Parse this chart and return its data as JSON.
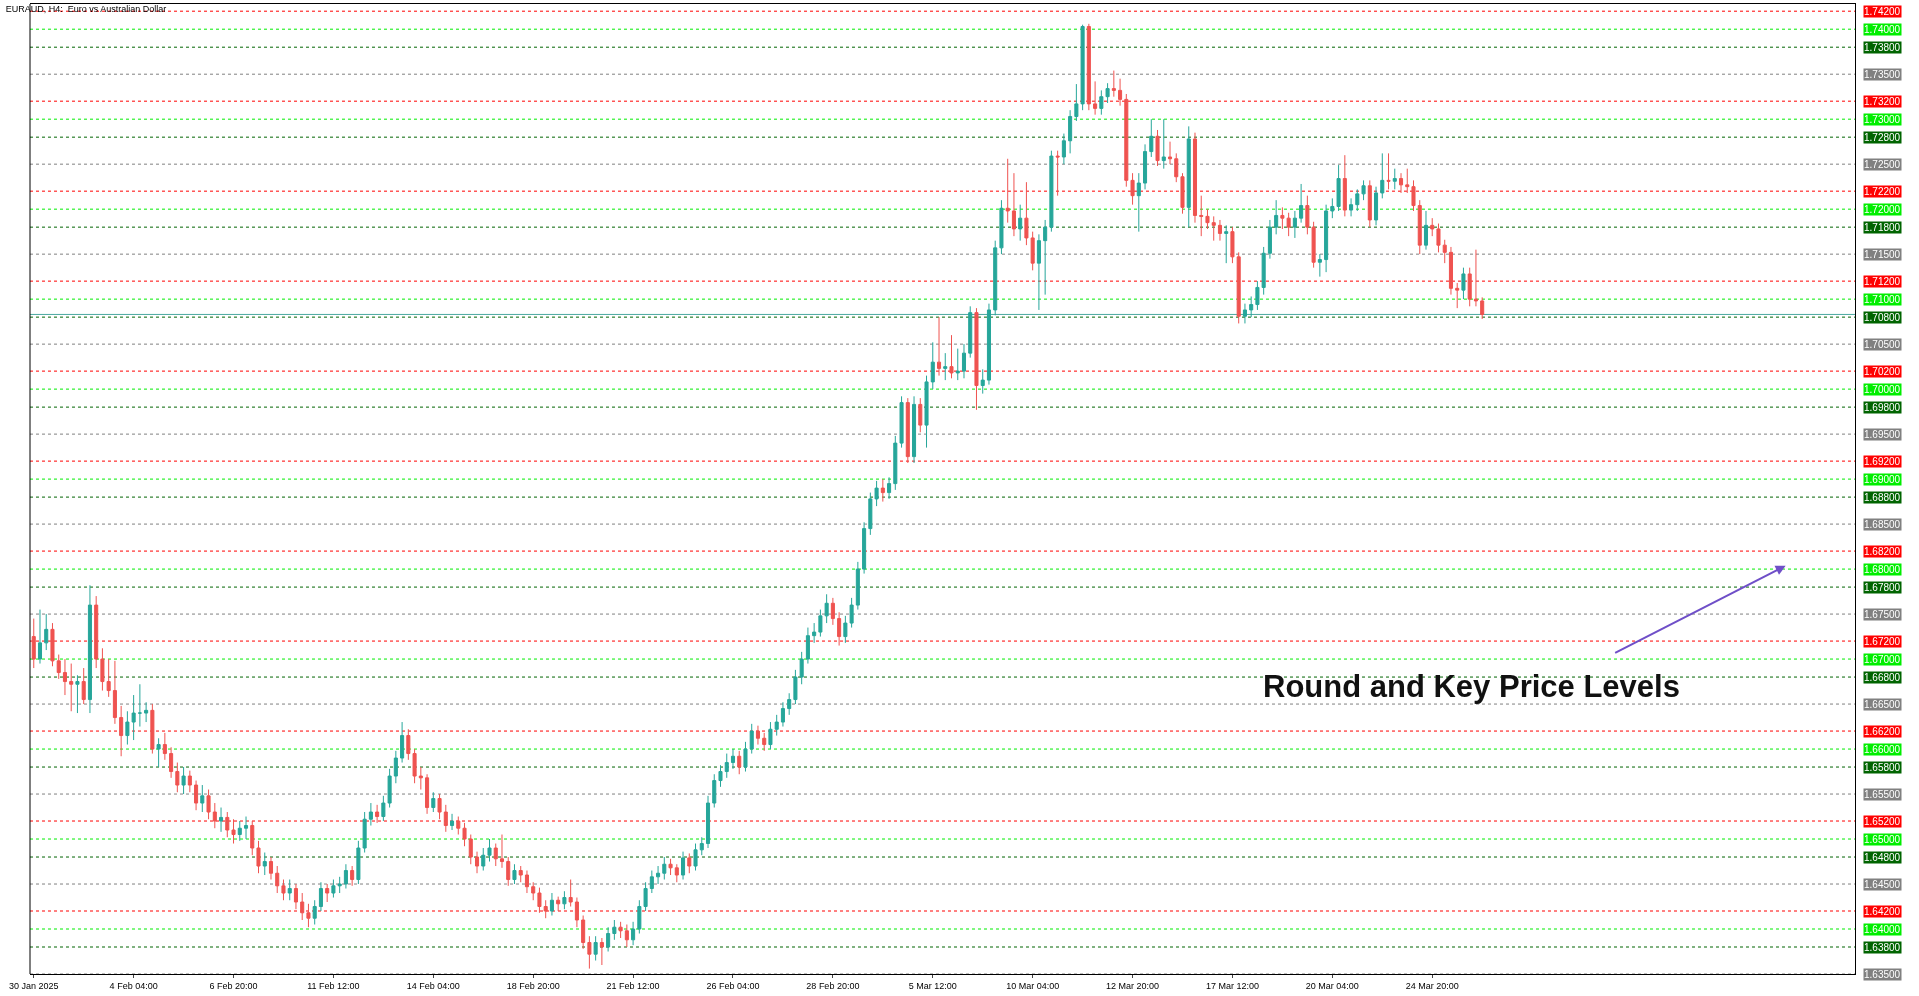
{
  "chart_data": {
    "type": "candlestick",
    "title": "EURAUD, H4:  Euro vs Australian Dollar",
    "categories": [
      "30 Jan 2025",
      null,
      null,
      null,
      null,
      null,
      null,
      null,
      null,
      null,
      null,
      null,
      null,
      null,
      null,
      null,
      "4 Feb 04:00",
      null,
      null,
      null,
      null,
      null,
      null,
      null,
      null,
      null,
      null,
      null,
      null,
      null,
      null,
      null,
      "6 Feb 20:00",
      null,
      null,
      null,
      null,
      null,
      null,
      null,
      null,
      null,
      null,
      null,
      null,
      null,
      null,
      null,
      "11 Feb 12:00",
      null,
      null,
      null,
      null,
      null,
      null,
      null,
      null,
      null,
      null,
      null,
      null,
      null,
      null,
      null,
      "14 Feb 04:00",
      null,
      null,
      null,
      null,
      null,
      null,
      null,
      null,
      null,
      null,
      null,
      null,
      null,
      null,
      null,
      "18 Feb 20:00",
      null,
      null,
      null,
      null,
      null,
      null,
      null,
      null,
      null,
      null,
      null,
      null,
      null,
      null,
      null,
      "21 Feb 12:00",
      null,
      null,
      null,
      null,
      null,
      null,
      null,
      null,
      null,
      null,
      null,
      null,
      null,
      null,
      null,
      "26 Feb 04:00",
      null,
      null,
      null,
      null,
      null,
      null,
      null,
      null,
      null,
      null,
      null,
      null,
      null,
      null,
      null,
      "28 Feb 20:00",
      null,
      null,
      null,
      null,
      null,
      null,
      null,
      null,
      null,
      null,
      null,
      null,
      null,
      null,
      null,
      "5 Mar 12:00",
      null,
      null,
      null,
      null,
      null,
      null,
      null,
      null,
      null,
      null,
      null,
      null,
      null,
      null,
      null,
      "10 Mar 04:00",
      null,
      null,
      null,
      null,
      null,
      null,
      null,
      null,
      null,
      null,
      null,
      null,
      null,
      null,
      null,
      "12 Mar 20:00",
      null,
      null,
      null,
      null,
      null,
      null,
      null,
      null,
      null,
      null,
      null,
      null,
      null,
      null,
      null,
      "17 Mar 12:00",
      null,
      null,
      null,
      null,
      null,
      null,
      null,
      null,
      null,
      null,
      null,
      null,
      null,
      null,
      null,
      "20 Mar 04:00",
      null,
      null,
      null,
      null,
      null,
      null,
      null,
      null,
      null,
      null,
      null,
      null,
      null,
      null,
      null,
      "24 Mar 20:00",
      null,
      null,
      null,
      null,
      null,
      null,
      null,
      null
    ],
    "ohlc": [
      [
        1.6725,
        1.6745,
        1.669,
        1.67
      ],
      [
        1.67,
        1.6755,
        1.6695,
        1.6718
      ],
      [
        1.6718,
        1.675,
        1.671,
        1.6733
      ],
      [
        1.6733,
        1.674,
        1.6692,
        1.6698
      ],
      [
        1.6698,
        1.6705,
        1.6678,
        1.6685
      ],
      [
        1.6685,
        1.67,
        1.666,
        1.6675
      ],
      [
        1.6675,
        1.6695,
        1.6642,
        1.6672
      ],
      [
        1.6672,
        1.6682,
        1.664,
        1.6675
      ],
      [
        1.6675,
        1.669,
        1.665,
        1.6655
      ],
      [
        1.6655,
        1.6782,
        1.664,
        1.676
      ],
      [
        1.676,
        1.677,
        1.669,
        1.67
      ],
      [
        1.67,
        1.6712,
        1.6665,
        1.6675
      ],
      [
        1.6675,
        1.67,
        1.6658,
        1.6665
      ],
      [
        1.6665,
        1.6698,
        1.6628,
        1.6635
      ],
      [
        1.6635,
        1.6648,
        1.6592,
        1.6615
      ],
      [
        1.6615,
        1.6642,
        1.6605,
        1.663
      ],
      [
        1.663,
        1.666,
        1.661,
        1.664
      ],
      [
        1.664,
        1.6672,
        1.6625,
        1.664
      ],
      [
        1.664,
        1.6652,
        1.663,
        1.6643
      ],
      [
        1.6643,
        1.665,
        1.6595,
        1.66
      ],
      [
        1.66,
        1.6612,
        1.658,
        1.6605
      ],
      [
        1.6605,
        1.6618,
        1.6588,
        1.6595
      ],
      [
        1.6595,
        1.6602,
        1.6568,
        1.6575
      ],
      [
        1.6575,
        1.6585,
        1.6552,
        1.656
      ],
      [
        1.656,
        1.658,
        1.655,
        1.657
      ],
      [
        1.657,
        1.6576,
        1.6552,
        1.656
      ],
      [
        1.656,
        1.6565,
        1.6532,
        1.654
      ],
      [
        1.654,
        1.656,
        1.653,
        1.6548
      ],
      [
        1.6548,
        1.6555,
        1.6522,
        1.653
      ],
      [
        1.653,
        1.654,
        1.6512,
        1.652
      ],
      [
        1.652,
        1.6535,
        1.6508,
        1.6524
      ],
      [
        1.6524,
        1.653,
        1.6502,
        1.651
      ],
      [
        1.651,
        1.6522,
        1.6495,
        1.6505
      ],
      [
        1.6505,
        1.652,
        1.6498,
        1.6512
      ],
      [
        1.6512,
        1.6525,
        1.65,
        1.6515
      ],
      [
        1.6515,
        1.652,
        1.6482,
        1.649
      ],
      [
        1.649,
        1.6498,
        1.6462,
        1.647
      ],
      [
        1.647,
        1.6485,
        1.646,
        1.6475
      ],
      [
        1.6475,
        1.648,
        1.6455,
        1.6462
      ],
      [
        1.6462,
        1.647,
        1.644,
        1.6448
      ],
      [
        1.6448,
        1.6455,
        1.6432,
        1.644
      ],
      [
        1.644,
        1.6455,
        1.6432,
        1.6445
      ],
      [
        1.6445,
        1.645,
        1.6422,
        1.643
      ],
      [
        1.643,
        1.644,
        1.641,
        1.6418
      ],
      [
        1.6418,
        1.6428,
        1.6402,
        1.6412
      ],
      [
        1.6412,
        1.6432,
        1.6405,
        1.6425
      ],
      [
        1.6425,
        1.6452,
        1.642,
        1.6445
      ],
      [
        1.6445,
        1.645,
        1.643,
        1.644
      ],
      [
        1.644,
        1.6455,
        1.6435,
        1.6448
      ],
      [
        1.6448,
        1.6458,
        1.644,
        1.645
      ],
      [
        1.645,
        1.6472,
        1.6445,
        1.6465
      ],
      [
        1.6465,
        1.647,
        1.6448,
        1.6455
      ],
      [
        1.6455,
        1.6498,
        1.645,
        1.649
      ],
      [
        1.649,
        1.653,
        1.6485,
        1.6522
      ],
      [
        1.6522,
        1.654,
        1.6515,
        1.653
      ],
      [
        1.653,
        1.6538,
        1.6518,
        1.6525
      ],
      [
        1.6525,
        1.6548,
        1.652,
        1.654
      ],
      [
        1.654,
        1.6578,
        1.6535,
        1.657
      ],
      [
        1.657,
        1.6598,
        1.6562,
        1.659
      ],
      [
        1.659,
        1.663,
        1.6585,
        1.6615
      ],
      [
        1.6615,
        1.6622,
        1.6588,
        1.6595
      ],
      [
        1.6595,
        1.66,
        1.6562,
        1.657
      ],
      [
        1.657,
        1.658,
        1.6555,
        1.6568
      ],
      [
        1.6568,
        1.6572,
        1.6528,
        1.6535
      ],
      [
        1.6535,
        1.6552,
        1.653,
        1.6545
      ],
      [
        1.6545,
        1.655,
        1.6522,
        1.653
      ],
      [
        1.653,
        1.6538,
        1.6508,
        1.6515
      ],
      [
        1.6515,
        1.6528,
        1.651,
        1.652
      ],
      [
        1.652,
        1.6525,
        1.6505,
        1.6512
      ],
      [
        1.6512,
        1.6518,
        1.6492,
        1.65
      ],
      [
        1.65,
        1.6505,
        1.6472,
        1.648
      ],
      [
        1.648,
        1.6486,
        1.6462,
        1.647
      ],
      [
        1.647,
        1.649,
        1.6465,
        1.6482
      ],
      [
        1.6482,
        1.65,
        1.6475,
        1.649
      ],
      [
        1.649,
        1.6495,
        1.647,
        1.6478
      ],
      [
        1.6478,
        1.6505,
        1.6468,
        1.6475
      ],
      [
        1.6475,
        1.648,
        1.6448,
        1.6455
      ],
      [
        1.6455,
        1.6472,
        1.645,
        1.6465
      ],
      [
        1.6465,
        1.647,
        1.6452,
        1.646
      ],
      [
        1.646,
        1.6465,
        1.644,
        1.6447
      ],
      [
        1.6447,
        1.6452,
        1.6432,
        1.644
      ],
      [
        1.644,
        1.6446,
        1.6418,
        1.6425
      ],
      [
        1.6425,
        1.6432,
        1.6412,
        1.642
      ],
      [
        1.642,
        1.644,
        1.6415,
        1.6432
      ],
      [
        1.6432,
        1.6436,
        1.642,
        1.6428
      ],
      [
        1.6428,
        1.6442,
        1.6422,
        1.6435
      ],
      [
        1.6435,
        1.6455,
        1.6425,
        1.643
      ],
      [
        1.643,
        1.6435,
        1.6402,
        1.641
      ],
      [
        1.641,
        1.6415,
        1.6378,
        1.6385
      ],
      [
        1.6385,
        1.6392,
        1.6356,
        1.6372
      ],
      [
        1.6372,
        1.6392,
        1.6365,
        1.6385
      ],
      [
        1.6385,
        1.639,
        1.636,
        1.638
      ],
      [
        1.638,
        1.6402,
        1.6375,
        1.6395
      ],
      [
        1.6395,
        1.641,
        1.6388,
        1.6402
      ],
      [
        1.6402,
        1.6408,
        1.639,
        1.6398
      ],
      [
        1.6398,
        1.6405,
        1.638,
        1.6388
      ],
      [
        1.6388,
        1.6408,
        1.6382,
        1.64
      ],
      [
        1.64,
        1.6432,
        1.6395,
        1.6425
      ],
      [
        1.6425,
        1.6452,
        1.642,
        1.6445
      ],
      [
        1.6445,
        1.6465,
        1.644,
        1.6458
      ],
      [
        1.6458,
        1.647,
        1.645,
        1.6462
      ],
      [
        1.6462,
        1.648,
        1.6455,
        1.6472
      ],
      [
        1.6472,
        1.6478,
        1.646,
        1.6468
      ],
      [
        1.6468,
        1.6472,
        1.6452,
        1.646
      ],
      [
        1.646,
        1.6486,
        1.6455,
        1.6479
      ],
      [
        1.6479,
        1.6484,
        1.6462,
        1.647
      ],
      [
        1.647,
        1.6495,
        1.6465,
        1.6488
      ],
      [
        1.6488,
        1.6502,
        1.6482,
        1.6495
      ],
      [
        1.6495,
        1.6548,
        1.649,
        1.654
      ],
      [
        1.654,
        1.6572,
        1.6535,
        1.6565
      ],
      [
        1.6565,
        1.6582,
        1.6558,
        1.6575
      ],
      [
        1.6575,
        1.6595,
        1.6568,
        1.6585
      ],
      [
        1.6585,
        1.66,
        1.6578,
        1.6592
      ],
      [
        1.6592,
        1.6598,
        1.6572,
        1.658
      ],
      [
        1.658,
        1.6608,
        1.6575,
        1.66
      ],
      [
        1.66,
        1.6628,
        1.6595,
        1.662
      ],
      [
        1.662,
        1.6626,
        1.6605,
        1.6612
      ],
      [
        1.6612,
        1.6618,
        1.6598,
        1.6605
      ],
      [
        1.6605,
        1.663,
        1.66,
        1.6622
      ],
      [
        1.6622,
        1.6638,
        1.6615,
        1.663
      ],
      [
        1.663,
        1.6652,
        1.6625,
        1.6645
      ],
      [
        1.6645,
        1.6662,
        1.6638,
        1.6655
      ],
      [
        1.6655,
        1.6688,
        1.665,
        1.668
      ],
      [
        1.668,
        1.6708,
        1.6672,
        1.67
      ],
      [
        1.67,
        1.6735,
        1.6695,
        1.6726
      ],
      [
        1.6726,
        1.674,
        1.6718,
        1.673
      ],
      [
        1.673,
        1.6755,
        1.6725,
        1.6748
      ],
      [
        1.6748,
        1.6772,
        1.674,
        1.6762
      ],
      [
        1.6762,
        1.6768,
        1.6738,
        1.6745
      ],
      [
        1.6745,
        1.6752,
        1.6715,
        1.6725
      ],
      [
        1.6725,
        1.6748,
        1.6718,
        1.674
      ],
      [
        1.674,
        1.6768,
        1.6735,
        1.676
      ],
      [
        1.676,
        1.6808,
        1.6755,
        1.68
      ],
      [
        1.68,
        1.6852,
        1.6795,
        1.6845
      ],
      [
        1.6845,
        1.6885,
        1.6838,
        1.6878
      ],
      [
        1.6878,
        1.6898,
        1.687,
        1.689
      ],
      [
        1.689,
        1.69,
        1.6875,
        1.6885
      ],
      [
        1.6885,
        1.6902,
        1.6878,
        1.6895
      ],
      [
        1.6895,
        1.6948,
        1.6888,
        1.694
      ],
      [
        1.694,
        1.6992,
        1.6935,
        1.6985
      ],
      [
        1.6985,
        1.699,
        1.6918,
        1.6925
      ],
      [
        1.6925,
        1.6992,
        1.6918,
        1.6983
      ],
      [
        1.6983,
        1.699,
        1.6952,
        1.696
      ],
      [
        1.696,
        1.7015,
        1.6935,
        1.7008
      ],
      [
        1.7008,
        1.7052,
        1.7,
        1.703
      ],
      [
        1.703,
        1.708,
        1.7015,
        1.7023
      ],
      [
        1.7023,
        1.704,
        1.701,
        1.7025
      ],
      [
        1.7025,
        1.706,
        1.7012,
        1.7018
      ],
      [
        1.7018,
        1.7045,
        1.701,
        1.702
      ],
      [
        1.702,
        1.705,
        1.7012,
        1.704
      ],
      [
        1.704,
        1.7092,
        1.7035,
        1.7085
      ],
      [
        1.7085,
        1.709,
        1.6977,
        1.7004
      ],
      [
        1.7004,
        1.7022,
        1.6995,
        1.701
      ],
      [
        1.701,
        1.7095,
        1.7005,
        1.7088
      ],
      [
        1.7088,
        1.7165,
        1.7082,
        1.7157
      ],
      [
        1.7157,
        1.721,
        1.715,
        1.7201
      ],
      [
        1.7201,
        1.7256,
        1.7185,
        1.7198
      ],
      [
        1.7198,
        1.724,
        1.717,
        1.7178
      ],
      [
        1.7178,
        1.7205,
        1.7165,
        1.719
      ],
      [
        1.719,
        1.723,
        1.716,
        1.7168
      ],
      [
        1.7168,
        1.7175,
        1.7132,
        1.714
      ],
      [
        1.714,
        1.7172,
        1.7088,
        1.7165
      ],
      [
        1.7165,
        1.7188,
        1.7105,
        1.718
      ],
      [
        1.718,
        1.7265,
        1.7175,
        1.7259
      ],
      [
        1.7259,
        1.7265,
        1.7215,
        1.7258
      ],
      [
        1.7258,
        1.7284,
        1.725,
        1.7276
      ],
      [
        1.7276,
        1.731,
        1.7262,
        1.7303
      ],
      [
        1.7303,
        1.7339,
        1.7298,
        1.7317
      ],
      [
        1.7317,
        1.7405,
        1.731,
        1.7403
      ],
      [
        1.7403,
        1.7406,
        1.731,
        1.7317
      ],
      [
        1.7317,
        1.7342,
        1.7305,
        1.7312
      ],
      [
        1.7312,
        1.7332,
        1.7305,
        1.7325
      ],
      [
        1.7325,
        1.734,
        1.7318,
        1.7334
      ],
      [
        1.7334,
        1.7354,
        1.7325,
        1.7332
      ],
      [
        1.7332,
        1.7345,
        1.7315,
        1.7322
      ],
      [
        1.7322,
        1.7328,
        1.7225,
        1.7232
      ],
      [
        1.7232,
        1.724,
        1.7205,
        1.7215
      ],
      [
        1.7215,
        1.724,
        1.7175,
        1.7229
      ],
      [
        1.7229,
        1.7272,
        1.7222,
        1.7264
      ],
      [
        1.7264,
        1.73,
        1.7258,
        1.7281
      ],
      [
        1.7281,
        1.7288,
        1.7248,
        1.7254
      ],
      [
        1.7254,
        1.73,
        1.7245,
        1.7258
      ],
      [
        1.7258,
        1.7275,
        1.725,
        1.7256
      ],
      [
        1.7256,
        1.7262,
        1.723,
        1.7236
      ],
      [
        1.7236,
        1.724,
        1.7195,
        1.7202
      ],
      [
        1.7202,
        1.7292,
        1.718,
        1.7278
      ],
      [
        1.7278,
        1.7285,
        1.7185,
        1.7193
      ],
      [
        1.7193,
        1.7215,
        1.717,
        1.7192
      ],
      [
        1.7192,
        1.72,
        1.7178,
        1.7185
      ],
      [
        1.7185,
        1.7192,
        1.7165,
        1.7182
      ],
      [
        1.7182,
        1.7188,
        1.7165,
        1.7173
      ],
      [
        1.7173,
        1.7182,
        1.714,
        1.7175
      ],
      [
        1.7175,
        1.718,
        1.714,
        1.7147
      ],
      [
        1.7147,
        1.7152,
        1.7073,
        1.7081
      ],
      [
        1.7081,
        1.7095,
        1.7073,
        1.7088
      ],
      [
        1.7088,
        1.7103,
        1.708,
        1.7094
      ],
      [
        1.7094,
        1.712,
        1.7088,
        1.7113
      ],
      [
        1.7113,
        1.7158,
        1.7105,
        1.7151
      ],
      [
        1.7151,
        1.7188,
        1.7145,
        1.718
      ],
      [
        1.718,
        1.721,
        1.7172,
        1.7193
      ],
      [
        1.7193,
        1.7202,
        1.7178,
        1.719
      ],
      [
        1.719,
        1.7196,
        1.717,
        1.718
      ],
      [
        1.718,
        1.7198,
        1.7168,
        1.719
      ],
      [
        1.719,
        1.7228,
        1.7185,
        1.7204
      ],
      [
        1.7204,
        1.7215,
        1.7172,
        1.718
      ],
      [
        1.718,
        1.7186,
        1.7135,
        1.7141
      ],
      [
        1.7141,
        1.715,
        1.7125,
        1.7144
      ],
      [
        1.7144,
        1.7205,
        1.713,
        1.7198
      ],
      [
        1.7198,
        1.7212,
        1.719,
        1.7203
      ],
      [
        1.7203,
        1.7249,
        1.7198,
        1.7234
      ],
      [
        1.7234,
        1.726,
        1.7192,
        1.7199
      ],
      [
        1.7199,
        1.7212,
        1.7192,
        1.7205
      ],
      [
        1.7205,
        1.7222,
        1.7198,
        1.7217
      ],
      [
        1.7217,
        1.7232,
        1.721,
        1.7226
      ],
      [
        1.7226,
        1.7232,
        1.718,
        1.7188
      ],
      [
        1.7188,
        1.7225,
        1.7182,
        1.7218
      ],
      [
        1.7218,
        1.7262,
        1.7212,
        1.7232
      ],
      [
        1.7232,
        1.7262,
        1.7222,
        1.7231
      ],
      [
        1.7231,
        1.7245,
        1.7222,
        1.7234
      ],
      [
        1.7234,
        1.724,
        1.7218,
        1.7227
      ],
      [
        1.7227,
        1.7245,
        1.7218,
        1.7225
      ],
      [
        1.7225,
        1.7232,
        1.7198,
        1.7204
      ],
      [
        1.7204,
        1.721,
        1.715,
        1.716
      ],
      [
        1.716,
        1.7198,
        1.7155,
        1.7182
      ],
      [
        1.7182,
        1.719,
        1.717,
        1.7178
      ],
      [
        1.7178,
        1.7184,
        1.7152,
        1.716
      ],
      [
        1.716,
        1.7166,
        1.714,
        1.7152
      ],
      [
        1.7152,
        1.7158,
        1.7105,
        1.7112
      ],
      [
        1.7112,
        1.7118,
        1.709,
        1.711
      ],
      [
        1.711,
        1.7135,
        1.71,
        1.7128
      ],
      [
        1.7128,
        1.7135,
        1.7092,
        1.71
      ],
      [
        1.71,
        1.7155,
        1.7092,
        1.7098
      ],
      [
        1.7098,
        1.7102,
        1.7078,
        1.7083
      ]
    ],
    "ylim": [
      1.635,
      1.7428
    ],
    "grid": false,
    "ref_lines": [
      {
        "axis": "y",
        "value": 1.742,
        "label": "1.74200",
        "color": "#ff0000",
        "line_style": "dotted"
      },
      {
        "axis": "y",
        "value": 1.74,
        "label": "1.74000",
        "color": "#00ee00",
        "line_style": "dotted"
      },
      {
        "axis": "y",
        "value": 1.738,
        "label": "1.73800",
        "color": "#006400",
        "line_style": "dotted"
      },
      {
        "axis": "y",
        "value": 1.735,
        "label": "1.73500",
        "color": "#808080",
        "line_style": "dotted"
      },
      {
        "axis": "y",
        "value": 1.732,
        "label": "1.73200",
        "color": "#ff0000",
        "line_style": "dotted"
      },
      {
        "axis": "y",
        "value": 1.73,
        "label": "1.73000",
        "color": "#00ee00",
        "line_style": "dotted"
      },
      {
        "axis": "y",
        "value": 1.728,
        "label": "1.72800",
        "color": "#006400",
        "line_style": "dotted"
      },
      {
        "axis": "y",
        "value": 1.725,
        "label": "1.72500",
        "color": "#808080",
        "line_style": "dotted"
      },
      {
        "axis": "y",
        "value": 1.722,
        "label": "1.72200",
        "color": "#ff0000",
        "line_style": "dotted"
      },
      {
        "axis": "y",
        "value": 1.72,
        "label": "1.72000",
        "color": "#00ee00",
        "line_style": "dotted"
      },
      {
        "axis": "y",
        "value": 1.718,
        "label": "1.71800",
        "color": "#006400",
        "line_style": "dotted"
      },
      {
        "axis": "y",
        "value": 1.715,
        "label": "1.71500",
        "color": "#808080",
        "line_style": "dotted"
      },
      {
        "axis": "y",
        "value": 1.712,
        "label": "1.71200",
        "color": "#ff0000",
        "line_style": "dotted"
      },
      {
        "axis": "y",
        "value": 1.71,
        "label": "1.71000",
        "color": "#00ee00",
        "line_style": "dotted"
      },
      {
        "axis": "y",
        "value": 1.708,
        "label": "1.70800",
        "color": "#006400",
        "line_style": "dotted"
      },
      {
        "axis": "y",
        "value": 1.705,
        "label": "1.70500",
        "color": "#808080",
        "line_style": "dotted"
      },
      {
        "axis": "y",
        "value": 1.702,
        "label": "1.70200",
        "color": "#ff0000",
        "line_style": "dotted"
      },
      {
        "axis": "y",
        "value": 1.7,
        "label": "1.70000",
        "color": "#00ee00",
        "line_style": "dotted"
      },
      {
        "axis": "y",
        "value": 1.698,
        "label": "1.69800",
        "color": "#006400",
        "line_style": "dotted"
      },
      {
        "axis": "y",
        "value": 1.695,
        "label": "1.69500",
        "color": "#808080",
        "line_style": "dotted"
      },
      {
        "axis": "y",
        "value": 1.692,
        "label": "1.69200",
        "color": "#ff0000",
        "line_style": "dotted"
      },
      {
        "axis": "y",
        "value": 1.69,
        "label": "1.69000",
        "color": "#00ee00",
        "line_style": "dotted"
      },
      {
        "axis": "y",
        "value": 1.688,
        "label": "1.68800",
        "color": "#006400",
        "line_style": "dotted"
      },
      {
        "axis": "y",
        "value": 1.685,
        "label": "1.68500",
        "color": "#808080",
        "line_style": "dotted"
      },
      {
        "axis": "y",
        "value": 1.682,
        "label": "1.68200",
        "color": "#ff0000",
        "line_style": "dotted"
      },
      {
        "axis": "y",
        "value": 1.68,
        "label": "1.68000",
        "color": "#00ee00",
        "line_style": "dotted"
      },
      {
        "axis": "y",
        "value": 1.678,
        "label": "1.67800",
        "color": "#006400",
        "line_style": "dotted"
      },
      {
        "axis": "y",
        "value": 1.675,
        "label": "1.67500",
        "color": "#808080",
        "line_style": "dotted"
      },
      {
        "axis": "y",
        "value": 1.672,
        "label": "1.67200",
        "color": "#ff0000",
        "line_style": "dotted"
      },
      {
        "axis": "y",
        "value": 1.67,
        "label": "1.67000",
        "color": "#00ee00",
        "line_style": "dotted"
      },
      {
        "axis": "y",
        "value": 1.668,
        "label": "1.66800",
        "color": "#006400",
        "line_style": "dotted"
      },
      {
        "axis": "y",
        "value": 1.665,
        "label": "1.66500",
        "color": "#808080",
        "line_style": "dotted"
      },
      {
        "axis": "y",
        "value": 1.662,
        "label": "1.66200",
        "color": "#ff0000",
        "line_style": "dotted"
      },
      {
        "axis": "y",
        "value": 1.66,
        "label": "1.66000",
        "color": "#00ee00",
        "line_style": "dotted"
      },
      {
        "axis": "y",
        "value": 1.658,
        "label": "1.65800",
        "color": "#006400",
        "line_style": "dotted"
      },
      {
        "axis": "y",
        "value": 1.655,
        "label": "1.65500",
        "color": "#808080",
        "line_style": "dotted"
      },
      {
        "axis": "y",
        "value": 1.652,
        "label": "1.65200",
        "color": "#ff0000",
        "line_style": "dotted"
      },
      {
        "axis": "y",
        "value": 1.65,
        "label": "1.65000",
        "color": "#00ee00",
        "line_style": "dotted"
      },
      {
        "axis": "y",
        "value": 1.648,
        "label": "1.64800",
        "color": "#006400",
        "line_style": "dotted"
      },
      {
        "axis": "y",
        "value": 1.645,
        "label": "1.64500",
        "color": "#808080",
        "line_style": "dotted"
      },
      {
        "axis": "y",
        "value": 1.642,
        "label": "1.64200",
        "color": "#ff0000",
        "line_style": "dotted"
      },
      {
        "axis": "y",
        "value": 1.64,
        "label": "1.64000",
        "color": "#00ee00",
        "line_style": "dotted"
      },
      {
        "axis": "y",
        "value": 1.638,
        "label": "1.63800",
        "color": "#006400",
        "line_style": "dotted"
      },
      {
        "axis": "y",
        "value": 1.635,
        "label": "1.63500",
        "color": "#808080",
        "line_style": "dotted"
      },
      {
        "axis": "y",
        "value": 1.7083,
        "color": "#4aa8a0",
        "line_style": "solid"
      }
    ],
    "annotations": [
      "Round and Key Price Levels"
    ]
  }
}
